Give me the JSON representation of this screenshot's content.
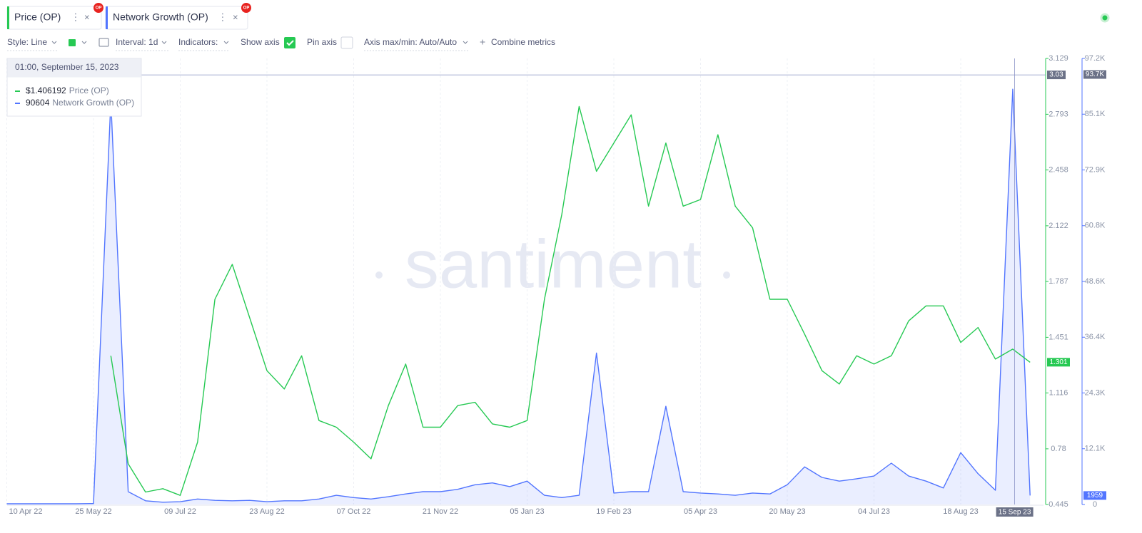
{
  "tabs": [
    {
      "badge": "OP"
    },
    {
      "badge": "OP"
    }
  ],
  "toolbar": {
    "style": "Style: Line",
    "interval": "Interval: 1d",
    "indicators": "Indicators:",
    "show_axis": "Show axis",
    "pin_axis": "Pin axis",
    "axis_range": "Axis max/min: Auto/Auto",
    "combine": "Combine metrics"
  },
  "watermark": "santiment",
  "tooltip": {
    "title": "01:00, September 15, 2023",
    "price": {
      "value": 1.406192,
      "label": "$1.406192"
    },
    "growth": 90604
  },
  "crosshair": {
    "date_label": "15 Sep 23",
    "value": 3.03,
    "value2": {
      "value": 93700,
      "label": "93.7K"
    }
  },
  "chart_data": {
    "type": "line",
    "grid": true,
    "x": [
      "10 Apr 22",
      "19 Apr 22",
      "28 Apr 22",
      "07 May 22",
      "16 May 22",
      "25 May 22",
      "03 Jun 22",
      "12 Jun 22",
      "21 Jun 22",
      "30 Jun 22",
      "09 Jul 22",
      "18 Jul 22",
      "27 Jul 22",
      "05 Aug 22",
      "14 Aug 22",
      "23 Aug 22",
      "01 Sep 22",
      "10 Sep 22",
      "19 Sep 22",
      "28 Sep 22",
      "07 Oct 22",
      "16 Oct 22",
      "25 Oct 22",
      "03 Nov 22",
      "12 Nov 22",
      "21 Nov 22",
      "30 Nov 22",
      "09 Dec 22",
      "18 Dec 22",
      "27 Dec 22",
      "05 Jan 23",
      "14 Jan 23",
      "23 Jan 23",
      "01 Feb 23",
      "10 Feb 23",
      "19 Feb 23",
      "28 Feb 23",
      "09 Mar 23",
      "18 Mar 23",
      "27 Mar 23",
      "05 Apr 23",
      "14 Apr 23",
      "23 Apr 23",
      "02 May 23",
      "11 May 23",
      "20 May 23",
      "29 May 23",
      "07 Jun 23",
      "16 Jun 23",
      "25 Jun 23",
      "04 Jul 23",
      "13 Jul 23",
      "22 Jul 23",
      "31 Jul 23",
      "09 Aug 23",
      "18 Aug 23",
      "27 Aug 23",
      "05 Sep 23",
      "14 Sep 23",
      "23 Sep 23"
    ],
    "xticks": [
      "10 Apr 22",
      "25 May 22",
      "09 Jul 22",
      "23 Aug 22",
      "07 Oct 22",
      "21 Nov 22",
      "05 Jan 23",
      "19 Feb 23",
      "05 Apr 23",
      "20 May 23",
      "04 Jul 23",
      "18 Aug 23"
    ],
    "ylim": [
      0.445,
      3.129
    ],
    "yticks": [
      0.445,
      0.78,
      1.116,
      1.451,
      1.787,
      2.122,
      2.458,
      2.793,
      3.129
    ],
    "y2lim": [
      0,
      97200
    ],
    "y2ticks": [
      0,
      {
        "value": 12150,
        "label": "12.1K"
      },
      {
        "value": 24300,
        "label": "24.3K"
      },
      {
        "value": 36450,
        "label": "36.4K"
      },
      {
        "value": 48600,
        "label": "48.6K"
      },
      {
        "value": 60750,
        "label": "60.8K"
      },
      {
        "value": 72900,
        "label": "72.9K"
      },
      {
        "value": 85050,
        "label": "85.1K"
      },
      {
        "value": 97200,
        "label": "97.2K"
      }
    ],
    "series": [
      {
        "name": "Price (OP)",
        "color": "#26c953",
        "values": [
          null,
          null,
          null,
          null,
          null,
          null,
          1.34,
          0.69,
          0.52,
          0.54,
          0.5,
          0.82,
          1.68,
          1.89,
          1.57,
          1.25,
          1.14,
          1.34,
          0.95,
          0.91,
          0.82,
          0.72,
          1.04,
          1.29,
          0.91,
          0.91,
          1.04,
          1.06,
          0.93,
          0.91,
          0.95,
          1.68,
          2.19,
          2.84,
          2.45,
          2.62,
          2.79,
          2.24,
          2.62,
          2.24,
          2.28,
          2.67,
          2.24,
          2.11,
          1.68,
          1.68,
          1.47,
          1.25,
          1.17,
          1.34,
          1.29,
          1.34,
          1.55,
          1.64,
          1.64,
          1.42,
          1.51,
          1.32,
          1.38,
          1.301
        ]
      },
      {
        "name": "Network Growth (OP)",
        "color": "#5275ff",
        "axis": "y2",
        "values": [
          150,
          150,
          150,
          150,
          150,
          200,
          88000,
          2800,
          800,
          500,
          600,
          1200,
          900,
          800,
          900,
          600,
          800,
          800,
          1200,
          2000,
          1500,
          1200,
          1700,
          2300,
          2800,
          2800,
          3300,
          4300,
          4700,
          3900,
          5100,
          2000,
          1500,
          2000,
          33000,
          2500,
          2800,
          2800,
          21400,
          2800,
          2500,
          2300,
          2000,
          2500,
          2300,
          4300,
          8200,
          5900,
          5100,
          5600,
          6200,
          9000,
          6200,
          5100,
          3600,
          11300,
          6700,
          3100,
          90500,
          1959
        ]
      }
    ]
  }
}
